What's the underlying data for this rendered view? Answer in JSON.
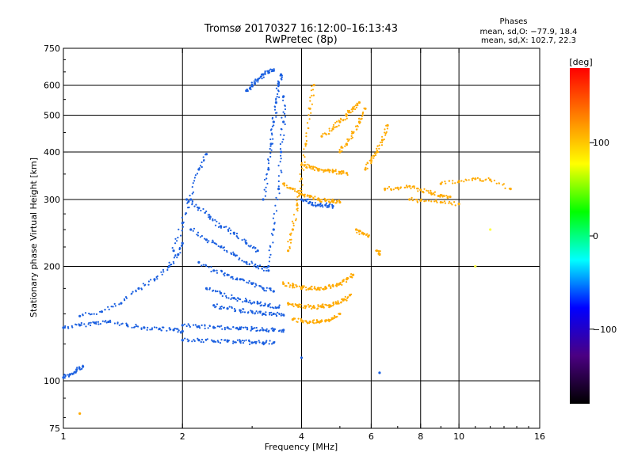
{
  "chart_data": {
    "type": "scatter",
    "title": "Tromsø 20170327 16:12:00–16:13:43",
    "subtitle": "RwPretec (8p)",
    "xlabel": "Frequency [MHz]",
    "ylabel": "Stationary phase Virtual Height [km]",
    "x_scale": "log",
    "y_scale": "log",
    "xlim": [
      1,
      16
    ],
    "ylim": [
      75,
      750
    ],
    "x_ticks": [
      1,
      2,
      4,
      6,
      8,
      10,
      16
    ],
    "x_tick_labels": [
      "1",
      "2",
      "4",
      "6",
      "8",
      "10",
      "16"
    ],
    "y_ticks": [
      75,
      100,
      200,
      300,
      400,
      500,
      600,
      750
    ],
    "y_tick_labels": [
      "75",
      "100",
      "200",
      "300",
      "400",
      "500",
      "600",
      "750"
    ],
    "x_gridlines": [
      2,
      4,
      6,
      8,
      10
    ],
    "y_gridlines": [
      100,
      200,
      300,
      400,
      500,
      600
    ],
    "grid": true,
    "legend": {
      "title": "Phases",
      "lines": [
        "mean, sd,O: −77.9, 18.4",
        "mean, sd,X: 102.7, 22.3"
      ],
      "position": "top-right"
    },
    "colorbar": {
      "label": "[deg]",
      "ticks": [
        100,
        0,
        -100
      ],
      "tick_labels": [
        "100",
        "0",
        "−100"
      ],
      "range": [
        -180,
        180
      ],
      "colors_top_to_bottom": [
        "#ff0000",
        "#ff8000",
        "#ffff00",
        "#00ff00",
        "#00ffff",
        "#0000ff",
        "#4b0082",
        "#000000"
      ]
    },
    "series": [
      {
        "name": "O",
        "color": "#1a5fe0",
        "traces": [
          {
            "x": [
              1.0,
              1.1,
              1.2,
              1.3,
              1.45,
              1.6,
              1.75,
              1.9,
              2.0
            ],
            "y": [
              138,
              140,
              142,
              143,
              140,
              138,
              137,
              136,
              135
            ]
          },
          {
            "x": [
              1.0,
              1.04,
              1.08,
              1.12
            ],
            "y": [
              102,
              104,
              107,
              109
            ]
          },
          {
            "x": [
              1.1,
              1.25,
              1.4,
              1.55,
              1.7,
              1.85,
              1.95,
              2.0
            ],
            "y": [
              148,
              152,
              160,
              175,
              185,
              200,
              215,
              230
            ]
          },
          {
            "x": [
              1.9,
              2.0,
              2.1,
              2.2,
              2.3
            ],
            "y": [
              220,
              260,
              300,
              360,
              395
            ]
          },
          {
            "x": [
              2.05,
              2.2,
              2.35,
              2.5,
              2.7,
              2.9,
              3.1
            ],
            "y": [
              300,
              285,
              270,
              255,
              245,
              230,
              220
            ]
          },
          {
            "x": [
              2.1,
              2.3,
              2.5,
              2.7,
              2.9,
              3.1,
              3.3
            ],
            "y": [
              250,
              235,
              225,
              215,
              205,
              200,
              195
            ]
          },
          {
            "x": [
              2.2,
              2.4,
              2.6,
              2.8,
              3.0,
              3.2,
              3.4
            ],
            "y": [
              205,
              195,
              190,
              185,
              180,
              175,
              172
            ]
          },
          {
            "x": [
              2.3,
              2.5,
              2.7,
              2.9,
              3.1,
              3.3,
              3.5
            ],
            "y": [
              175,
              170,
              165,
              162,
              160,
              158,
              156
            ]
          },
          {
            "x": [
              2.4,
              2.6,
              2.8,
              3.0,
              3.2,
              3.4,
              3.6
            ],
            "y": [
              158,
              155,
              153,
              152,
              150,
              150,
              149
            ]
          },
          {
            "x": [
              2.0,
              2.2,
              2.4,
              2.6,
              2.8,
              3.0,
              3.2,
              3.4,
              3.6
            ],
            "y": [
              140,
              139,
              138,
              138,
              137,
              137,
              136,
              136,
              136
            ]
          },
          {
            "x": [
              2.0,
              2.2,
              2.4,
              2.6,
              2.8,
              3.0,
              3.2,
              3.4
            ],
            "y": [
              128,
              128,
              127,
              127,
              127,
              126,
              126,
              126
            ]
          },
          {
            "x": [
              3.2,
              3.3,
              3.35,
              3.4,
              3.45,
              3.5,
              3.55
            ],
            "y": [
              300,
              360,
              420,
              480,
              540,
              600,
              640
            ]
          },
          {
            "x": [
              3.3,
              3.4,
              3.5,
              3.55,
              3.6,
              3.6
            ],
            "y": [
              200,
              250,
              320,
              400,
              480,
              560
            ]
          },
          {
            "x": [
              2.9,
              3.0,
              3.1,
              3.2,
              3.3,
              3.4
            ],
            "y": [
              580,
              600,
              620,
              640,
              650,
              655
            ]
          },
          {
            "x": [
              4.0,
              4.2,
              4.4,
              4.6,
              4.8
            ],
            "y": [
              300,
              295,
              290,
              290,
              288
            ]
          }
        ]
      },
      {
        "name": "X",
        "color": "#ffaa00",
        "traces": [
          {
            "x": [
              3.7,
              3.8,
              3.9,
              4.0,
              4.1,
              4.2,
              4.3
            ],
            "y": [
              220,
              250,
              290,
              340,
              420,
              520,
              600
            ]
          },
          {
            "x": [
              3.6,
              3.8,
              4.0,
              4.2,
              4.4,
              4.6,
              4.8,
              5.0
            ],
            "y": [
              330,
              320,
              310,
              305,
              300,
              298,
              296,
              295
            ]
          },
          {
            "x": [
              4.0,
              4.2,
              4.4,
              4.6,
              4.8,
              5.0,
              5.2
            ],
            "y": [
              370,
              365,
              360,
              358,
              356,
              354,
              352
            ]
          },
          {
            "x": [
              3.6,
              3.8,
              4.0,
              4.2,
              4.4,
              4.6,
              4.8,
              5.0,
              5.2,
              5.4
            ],
            "y": [
              180,
              178,
              176,
              175,
              175,
              176,
              178,
              180,
              185,
              190
            ]
          },
          {
            "x": [
              3.7,
              3.9,
              4.1,
              4.3,
              4.5,
              4.7,
              4.9,
              5.1,
              5.3
            ],
            "y": [
              160,
              158,
              157,
              156,
              157,
              158,
              160,
              163,
              168
            ]
          },
          {
            "x": [
              3.8,
              4.0,
              4.2,
              4.4,
              4.6,
              4.8,
              5.0
            ],
            "y": [
              145,
              144,
              143,
              143,
              144,
              146,
              150
            ]
          },
          {
            "x": [
              4.5,
              4.8,
              5.0,
              5.2,
              5.4,
              5.6
            ],
            "y": [
              440,
              460,
              480,
              500,
              520,
              540
            ]
          },
          {
            "x": [
              5.0,
              5.2,
              5.4,
              5.6,
              5.8
            ],
            "y": [
              400,
              420,
              450,
              480,
              520
            ]
          },
          {
            "x": [
              5.8,
              6.0,
              6.2,
              6.4,
              6.6
            ],
            "y": [
              360,
              380,
              400,
              430,
              470
            ]
          },
          {
            "x": [
              6.5,
              7.0,
              7.5,
              8.0,
              8.5,
              9.0,
              9.5
            ],
            "y": [
              320,
              322,
              325,
              318,
              312,
              308,
              305
            ]
          },
          {
            "x": [
              9.0,
              10.0,
              11.0,
              12.0,
              13.5
            ],
            "y": [
              330,
              335,
              340,
              338,
              320
            ]
          },
          {
            "x": [
              7.5,
              8.0,
              9.0,
              10.0
            ],
            "y": [
              300,
              298,
              295,
              292
            ]
          },
          {
            "x": [
              5.5,
              5.7,
              5.9
            ],
            "y": [
              250,
              245,
              240
            ]
          },
          {
            "x": [
              6.2,
              6.3
            ],
            "y": [
              220,
              215
            ]
          }
        ]
      }
    ],
    "isolated_points": [
      {
        "x": 1.1,
        "y": 82,
        "color": "#ffaa00"
      },
      {
        "x": 6.3,
        "y": 105,
        "color": "#1a5fe0"
      },
      {
        "x": 4.0,
        "y": 115,
        "color": "#1a5fe0"
      },
      {
        "x": 12.0,
        "y": 250,
        "color": "#ffff44"
      },
      {
        "x": 11.0,
        "y": 200,
        "color": "#ffff44"
      }
    ]
  }
}
